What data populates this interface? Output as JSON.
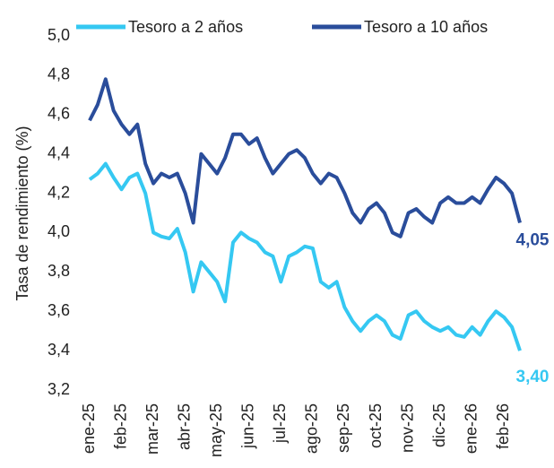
{
  "chart_data": {
    "type": "line",
    "y_label": "Tasa de rendimiento (%)",
    "categories": [
      "ene-25",
      null,
      null,
      null,
      "feb-25",
      null,
      null,
      null,
      "mar-25",
      null,
      null,
      null,
      "abr-25",
      null,
      null,
      null,
      "may-25",
      null,
      null,
      null,
      "jun-25",
      null,
      null,
      null,
      "jul-25",
      null,
      null,
      null,
      "ago-25",
      null,
      null,
      null,
      "sep-25",
      null,
      null,
      null,
      "oct-25",
      null,
      null,
      null,
      "nov-25",
      null,
      null,
      null,
      "dic-25",
      null,
      null,
      null,
      "ene-26",
      null,
      null,
      null,
      "feb-26",
      null,
      null
    ],
    "series": [
      {
        "name": "Tesoro a 2 años",
        "color": "#35c8f2",
        "values": [
          4.27,
          4.3,
          4.35,
          4.28,
          4.22,
          4.28,
          4.3,
          4.2,
          4.0,
          3.98,
          3.97,
          4.02,
          3.9,
          3.7,
          3.85,
          3.8,
          3.75,
          3.65,
          3.95,
          4.0,
          3.97,
          3.95,
          3.9,
          3.88,
          3.75,
          3.88,
          3.9,
          3.93,
          3.92,
          3.75,
          3.72,
          3.75,
          3.62,
          3.55,
          3.5,
          3.55,
          3.58,
          3.55,
          3.48,
          3.46,
          3.58,
          3.6,
          3.55,
          3.52,
          3.5,
          3.52,
          3.48,
          3.47,
          3.52,
          3.48,
          3.55,
          3.6,
          3.57,
          3.52,
          3.4
        ],
        "value_labels": [
          null,
          null,
          null,
          null,
          null,
          null,
          null,
          null,
          null,
          null,
          null,
          null,
          null,
          null,
          null,
          null,
          null,
          null,
          null,
          null,
          null,
          null,
          null,
          null,
          null,
          null,
          null,
          null,
          null,
          null,
          null,
          null,
          null,
          null,
          null,
          null,
          null,
          null,
          null,
          null,
          null,
          null,
          null,
          null,
          null,
          null,
          null,
          null,
          null,
          null,
          null,
          null,
          null,
          null,
          "3,40"
        ]
      },
      {
        "name": "Tesoro a 10 años",
        "color": "#2a4d9b",
        "values": [
          4.57,
          4.65,
          4.78,
          4.62,
          4.55,
          4.5,
          4.55,
          4.35,
          4.25,
          4.3,
          4.28,
          4.3,
          4.2,
          4.05,
          4.4,
          4.35,
          4.3,
          4.38,
          4.5,
          4.5,
          4.45,
          4.48,
          4.38,
          4.3,
          4.35,
          4.4,
          4.42,
          4.38,
          4.3,
          4.25,
          4.3,
          4.28,
          4.2,
          4.1,
          4.05,
          4.12,
          4.15,
          4.1,
          4.0,
          3.98,
          4.1,
          4.12,
          4.08,
          4.05,
          4.15,
          4.18,
          4.15,
          4.15,
          4.18,
          4.15,
          4.22,
          4.28,
          4.25,
          4.2,
          4.05
        ],
        "value_labels": [
          null,
          null,
          null,
          null,
          null,
          null,
          null,
          null,
          null,
          null,
          null,
          null,
          null,
          null,
          null,
          null,
          null,
          null,
          null,
          null,
          null,
          null,
          null,
          null,
          null,
          null,
          null,
          null,
          null,
          null,
          null,
          null,
          null,
          null,
          null,
          null,
          null,
          null,
          null,
          null,
          null,
          null,
          null,
          null,
          null,
          null,
          null,
          null,
          null,
          null,
          null,
          null,
          null,
          null,
          "4,05"
        ]
      }
    ],
    "ylim": [
      3.2,
      5.0
    ],
    "yticks": [
      {
        "value": 3.2,
        "label": "3,2"
      },
      {
        "value": 3.4,
        "label": "3,4"
      },
      {
        "value": 3.6,
        "label": "3,6"
      },
      {
        "value": 3.8,
        "label": "3,8"
      },
      {
        "value": 4.0,
        "label": "4,0"
      },
      {
        "value": 4.2,
        "label": "4,2"
      },
      {
        "value": 4.4,
        "label": "4,4"
      },
      {
        "value": 4.6,
        "label": "4,6"
      },
      {
        "value": 4.8,
        "label": "4,8"
      },
      {
        "value": 5.0,
        "label": "5,0"
      }
    ],
    "grid": false,
    "legend": "top"
  }
}
